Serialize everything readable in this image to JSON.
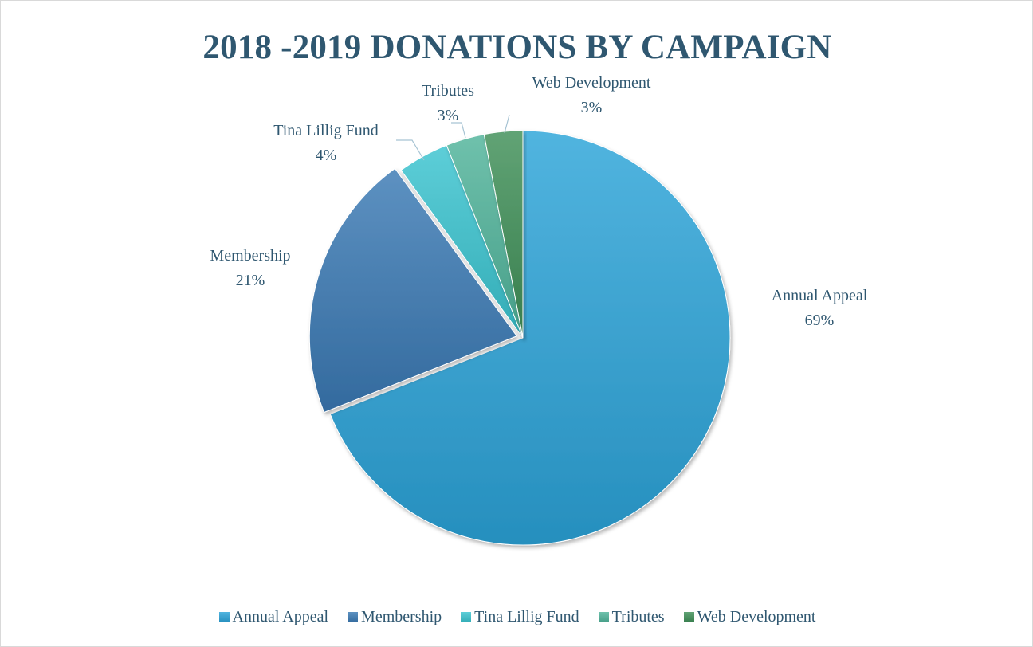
{
  "chart_data": {
    "type": "pie",
    "title": "2018 -2019 DONATIONS BY CAMPAIGN",
    "categories": [
      "Annual Appeal",
      "Membership",
      "Tina Lillig Fund",
      "Tributes",
      "Web Development"
    ],
    "values": [
      69,
      21,
      4,
      3,
      3
    ],
    "value_labels": [
      "69%",
      "21%",
      "4%",
      "3%",
      "3%"
    ],
    "unit": "%",
    "colors": [
      "#2ba3d8",
      "#3a79b3",
      "#39c3cf",
      "#4fb39a",
      "#3e8f57"
    ],
    "exploded_slice": "Membership",
    "legend_position": "bottom"
  }
}
